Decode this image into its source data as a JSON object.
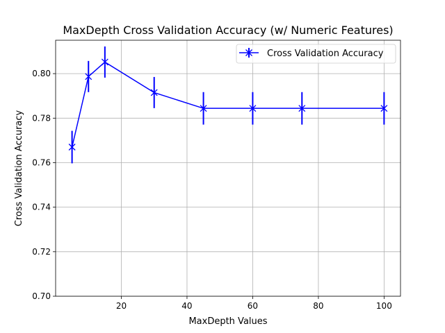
{
  "chart_data": {
    "type": "line",
    "title": "MaxDepth Cross Validation Accuracy (w/ Numeric Features)",
    "xlabel": "MaxDepth Values",
    "ylabel": "Cross Validation Accuracy",
    "xlim": [
      0,
      105
    ],
    "ylim": [
      0.7,
      0.815
    ],
    "xticks": [
      20,
      40,
      60,
      80,
      100
    ],
    "yticks": [
      0.7,
      0.72,
      0.74,
      0.76,
      0.78,
      0.8
    ],
    "xtick_labels": [
      "20",
      "40",
      "60",
      "80",
      "100"
    ],
    "ytick_labels": [
      "0.70",
      "0.72",
      "0.74",
      "0.76",
      "0.78",
      "0.80"
    ],
    "grid": true,
    "legend_position": "top-right",
    "series": [
      {
        "name": "Cross Validation Accuracy",
        "color": "#0000ff",
        "marker": "x",
        "x": [
          5,
          10,
          15,
          30,
          45,
          60,
          75,
          100
        ],
        "y": [
          0.767,
          0.7987,
          0.8052,
          0.7915,
          0.7844,
          0.7844,
          0.7844,
          0.7844
        ],
        "yerr": [
          0.0073,
          0.007,
          0.007,
          0.007,
          0.0073,
          0.0073,
          0.0073,
          0.0073
        ]
      }
    ]
  }
}
